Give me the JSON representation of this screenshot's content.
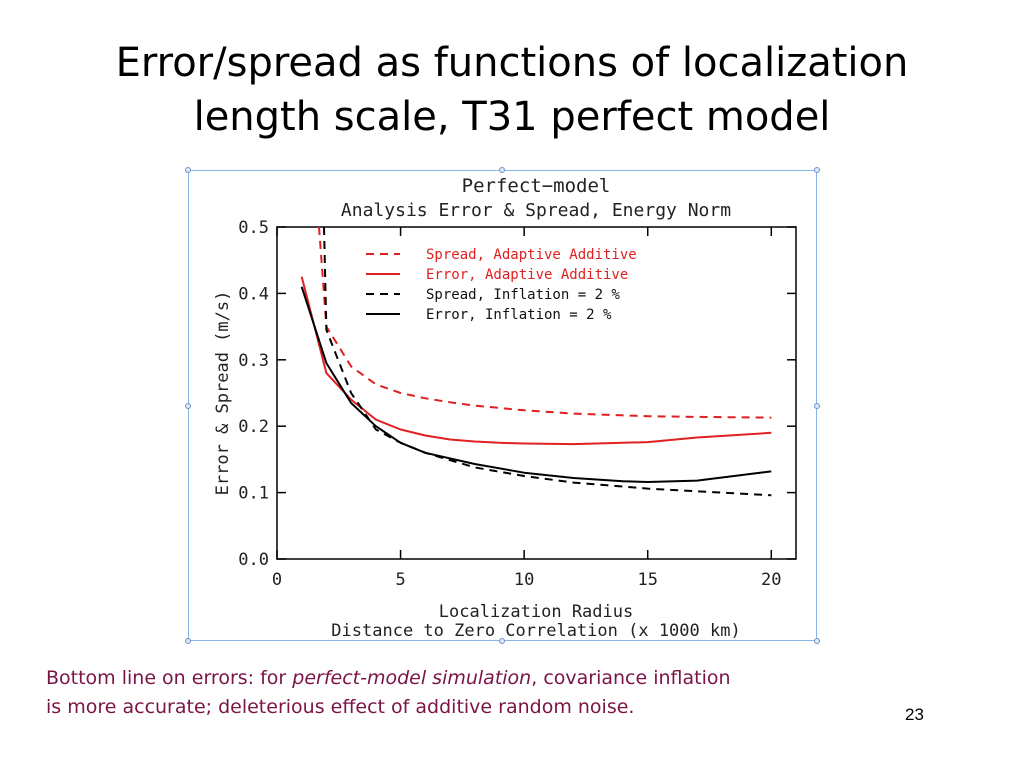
{
  "slide": {
    "title_line1": "Error/spread as functions of localization",
    "title_line2": "length scale, T31 perfect model",
    "caption": {
      "part1": "Bottom line on errors: for ",
      "part2": "perfect-model simulation",
      "part3": ", covariance inflation",
      "part4": "is more accurate; deleterious effect of additive random noise."
    },
    "page_number": "23"
  },
  "chart_data": {
    "type": "line",
    "title": "Perfect−model",
    "subtitle": "Analysis Error & Spread, Energy Norm",
    "xlabel": "Localization Radius",
    "xlabel2": "Distance to Zero Correlation (x 1000 km)",
    "ylabel": "Error & Spread (m/s)",
    "xlim": [
      0,
      21
    ],
    "ylim": [
      0,
      0.5
    ],
    "xticks": [
      "0",
      "5",
      "10",
      "15",
      "20"
    ],
    "yticks": [
      "0.0",
      "0.1",
      "0.2",
      "0.3",
      "0.4",
      "0.5"
    ],
    "grid": false,
    "legend_position": "top-right",
    "series": [
      {
        "name": "Spread, Adaptive Additive",
        "color": "#e02020",
        "dash": true,
        "x": [
          1.7,
          2,
          3,
          4,
          5,
          6,
          7,
          8,
          10,
          12,
          15,
          17,
          20
        ],
        "y": [
          0.5,
          0.35,
          0.29,
          0.263,
          0.25,
          0.242,
          0.236,
          0.231,
          0.224,
          0.219,
          0.215,
          0.214,
          0.213
        ]
      },
      {
        "name": "Error, Adaptive Additive",
        "color": "#e02020",
        "dash": false,
        "x": [
          1,
          2,
          3,
          4,
          5,
          6,
          7,
          8,
          9,
          10,
          12,
          15,
          17,
          20
        ],
        "y": [
          0.425,
          0.28,
          0.24,
          0.21,
          0.195,
          0.186,
          0.18,
          0.177,
          0.175,
          0.174,
          0.173,
          0.176,
          0.183,
          0.19
        ]
      },
      {
        "name": "Spread, Inflation = 2 %",
        "color": "#000000",
        "dash": true,
        "x": [
          1.9,
          2,
          3,
          4,
          5,
          6,
          8,
          10,
          12,
          15,
          17,
          20
        ],
        "y": [
          0.5,
          0.345,
          0.25,
          0.195,
          0.175,
          0.16,
          0.138,
          0.125,
          0.115,
          0.106,
          0.102,
          0.096
        ]
      },
      {
        "name": "Error, Inflation = 2 %",
        "color": "#000000",
        "dash": false,
        "x": [
          1,
          2,
          3,
          4,
          5,
          6,
          8,
          10,
          12,
          14,
          15,
          17,
          20
        ],
        "y": [
          0.41,
          0.295,
          0.235,
          0.2,
          0.175,
          0.16,
          0.143,
          0.13,
          0.122,
          0.117,
          0.116,
          0.118,
          0.132
        ]
      }
    ]
  }
}
